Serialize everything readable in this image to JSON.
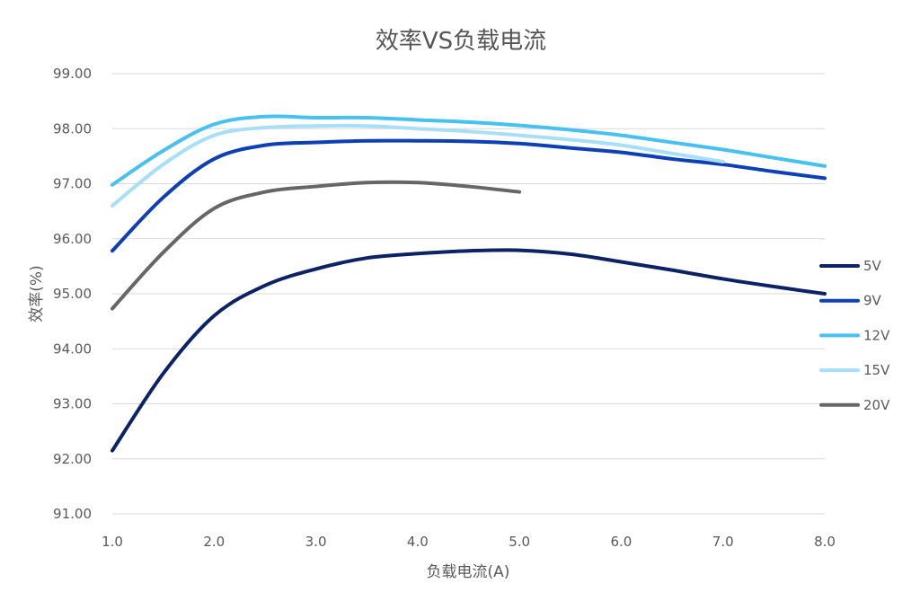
{
  "chart_data": {
    "type": "line",
    "title": "效率VS负载电流",
    "xlabel": "负载电流(A)",
    "ylabel": "效率(%)",
    "xlim": [
      1.0,
      8.0
    ],
    "ylim": [
      91.0,
      99.0
    ],
    "x_ticks": [
      "1.0",
      "2.0",
      "3.0",
      "4.0",
      "5.0",
      "6.0",
      "7.0",
      "8.0"
    ],
    "y_ticks": [
      "91.00",
      "92.00",
      "93.00",
      "94.00",
      "95.00",
      "96.00",
      "97.00",
      "98.00",
      "99.00"
    ],
    "grid": "horizontal",
    "legend_position": "right",
    "series": [
      {
        "name": "5V",
        "color": "#0b2265",
        "x": [
          1.0,
          1.5,
          2.0,
          2.5,
          3.0,
          3.5,
          4.0,
          4.5,
          5.0,
          5.5,
          6.0,
          6.5,
          7.0,
          7.5,
          8.0
        ],
        "y": [
          92.15,
          93.55,
          94.6,
          95.15,
          95.45,
          95.65,
          95.73,
          95.78,
          95.79,
          95.72,
          95.58,
          95.43,
          95.27,
          95.13,
          95.0
        ]
      },
      {
        "name": "9V",
        "color": "#0d3fb5",
        "x": [
          1.0,
          1.5,
          2.0,
          2.5,
          3.0,
          3.5,
          4.0,
          4.5,
          5.0,
          5.5,
          6.0,
          6.5,
          7.0,
          7.5,
          8.0
        ],
        "y": [
          95.78,
          96.75,
          97.45,
          97.7,
          97.75,
          97.78,
          97.78,
          97.77,
          97.73,
          97.65,
          97.57,
          97.45,
          97.35,
          97.22,
          97.1
        ]
      },
      {
        "name": "12V",
        "color": "#48c0f0",
        "x": [
          1.0,
          1.5,
          2.0,
          2.5,
          3.0,
          3.5,
          4.0,
          4.5,
          5.0,
          5.5,
          6.0,
          6.5,
          7.0,
          7.5,
          8.0
        ],
        "y": [
          96.98,
          97.6,
          98.08,
          98.22,
          98.2,
          98.2,
          98.16,
          98.12,
          98.06,
          97.98,
          97.88,
          97.75,
          97.62,
          97.47,
          97.32
        ]
      },
      {
        "name": "15V",
        "color": "#a8dff7",
        "x": [
          1.0,
          1.5,
          2.0,
          2.5,
          3.0,
          3.5,
          4.0,
          4.5,
          5.0,
          5.5,
          6.0,
          6.5,
          7.0
        ],
        "y": [
          96.6,
          97.35,
          97.88,
          98.02,
          98.05,
          98.05,
          98.0,
          97.95,
          97.88,
          97.8,
          97.7,
          97.55,
          97.4
        ]
      },
      {
        "name": "20V",
        "color": "#666666",
        "x": [
          1.0,
          1.5,
          2.0,
          2.5,
          3.0,
          3.5,
          4.0,
          4.5,
          5.0
        ],
        "y": [
          94.73,
          95.75,
          96.55,
          96.85,
          96.95,
          97.02,
          97.02,
          96.95,
          96.85
        ]
      }
    ]
  }
}
